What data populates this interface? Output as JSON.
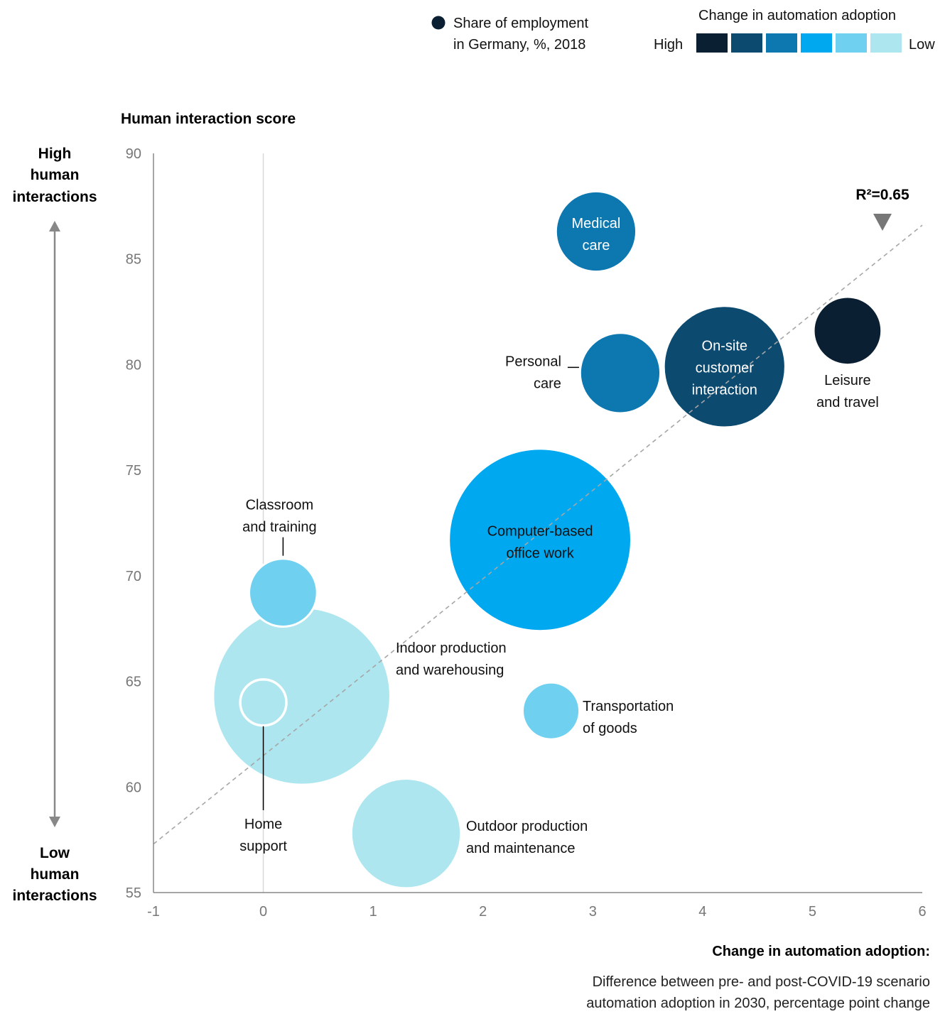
{
  "legend": {
    "size_label": [
      "Share of employment",
      "in Germany, %, 2018"
    ],
    "color_title": "Change in automation adoption",
    "high": "High",
    "low": "Low",
    "scale_colors": [
      "#0b1f33",
      "#0d4a70",
      "#0d77b0",
      "#00a8f0",
      "#6fd0f0",
      "#ade6ef"
    ]
  },
  "chart_data": {
    "type": "scatter",
    "title": "",
    "ylabel": "Human interaction score",
    "ylim": [
      55,
      90
    ],
    "xlim": [
      -1,
      6
    ],
    "x_ticks": [
      "-1",
      "0",
      "1",
      "2",
      "3",
      "4",
      "5",
      "6"
    ],
    "y_ticks": [
      "90",
      "85",
      "80",
      "75",
      "70",
      "65",
      "60",
      "55"
    ],
    "y_high_label": [
      "High",
      "human",
      "interactions"
    ],
    "y_low_label": [
      "Low",
      "human",
      "interactions"
    ],
    "r_squared_label": "R²=0.65",
    "trendline": {
      "x": [
        -1,
        6
      ],
      "y": [
        57.3,
        86.6
      ]
    },
    "series": [
      {
        "name": "Medical care",
        "x": 3.03,
        "y": 86.3,
        "size": 7,
        "color": "#0d77b0",
        "label": [
          "Medical",
          "care"
        ]
      },
      {
        "name": "Personal care",
        "x": 3.25,
        "y": 79.6,
        "size": 7,
        "color": "#0d77b0",
        "label": [
          "Personal",
          "care"
        ]
      },
      {
        "name": "On-site customer interaction",
        "x": 4.2,
        "y": 79.9,
        "size": 16,
        "color": "#0d4a70",
        "label": [
          "On-site",
          "customer",
          "interaction"
        ]
      },
      {
        "name": "Leisure and travel",
        "x": 5.32,
        "y": 81.6,
        "size": 5,
        "color": "#0b1f33",
        "label": [
          "Leisure",
          "and travel"
        ]
      },
      {
        "name": "Computer-based office work",
        "x": 2.52,
        "y": 71.7,
        "size": 36,
        "color": "#00a8f0",
        "label": [
          "Computer-based",
          "office work"
        ]
      },
      {
        "name": "Classroom and training",
        "x": 0.18,
        "y": 69.2,
        "size": 5,
        "color": "#6fd0f0",
        "label": [
          "Classroom",
          "and training"
        ]
      },
      {
        "name": "Indoor production and warehousing",
        "x": 0.35,
        "y": 64.3,
        "size": 34,
        "color": "#ade6ef",
        "label": [
          "Indoor production",
          "and warehousing"
        ]
      },
      {
        "name": "Home support",
        "x": 0.0,
        "y": 64.0,
        "size": 2.3,
        "color": "#ade6ef",
        "label": [
          "Home",
          "support"
        ]
      },
      {
        "name": "Transportation of goods",
        "x": 2.62,
        "y": 63.6,
        "size": 3.5,
        "color": "#6fd0f0",
        "label": [
          "Transportation",
          "of goods"
        ]
      },
      {
        "name": "Outdoor production and maintenance",
        "x": 1.3,
        "y": 57.8,
        "size": 13,
        "color": "#ade6ef",
        "label": [
          "Outdoor production",
          "and maintenance"
        ]
      }
    ]
  },
  "footer": {
    "title": "Change in automation adoption:",
    "lines": [
      "Difference between pre- and post-COVID-19 scenario",
      "automation adoption in 2030, percentage point change"
    ]
  }
}
